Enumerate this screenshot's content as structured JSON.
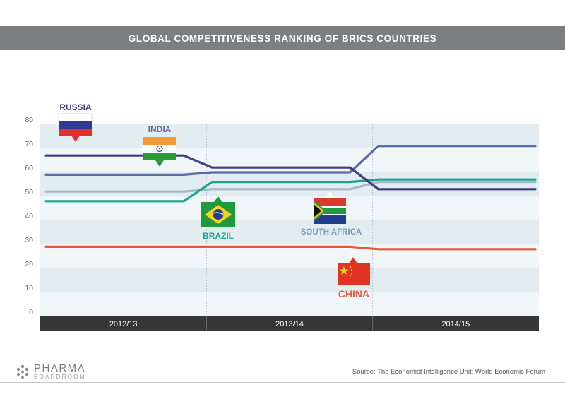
{
  "header": {
    "title": "GLOBAL COMPETITIVENESS RANKING OF BRICS COUNTRIES"
  },
  "chart_data": {
    "type": "line",
    "title": "GLOBAL COMPETITIVENESS RANKING OF BRICS COUNTRIES",
    "xlabel": "",
    "ylabel": "",
    "ylim": [
      0,
      80
    ],
    "yticks": [
      "0",
      "10",
      "20",
      "30",
      "40",
      "50",
      "60",
      "70",
      "80"
    ],
    "categories": [
      "2012/13",
      "2013/14",
      "2014/15"
    ],
    "grid": "alternating horizontal bands",
    "series": [
      {
        "name": "RUSSIA",
        "color": "#433a83",
        "values": [
          67,
          62,
          53
        ]
      },
      {
        "name": "INDIA",
        "color": "#5d6aa8",
        "values": [
          59,
          60,
          71
        ]
      },
      {
        "name": "BRAZIL",
        "color": "#1aa68f",
        "values": [
          48,
          56,
          57
        ]
      },
      {
        "name": "SOUTH AFRICA",
        "color": "#a5b8cb",
        "values": [
          52,
          53,
          56
        ]
      },
      {
        "name": "CHINA",
        "color": "#e35b45",
        "values": [
          29,
          29,
          28
        ]
      }
    ]
  },
  "footer": {
    "logo_main": "PHARMA",
    "logo_sub": "BOARDROOM",
    "source": "Source: The Economist Intelligence Unit; World Economic Forum"
  }
}
